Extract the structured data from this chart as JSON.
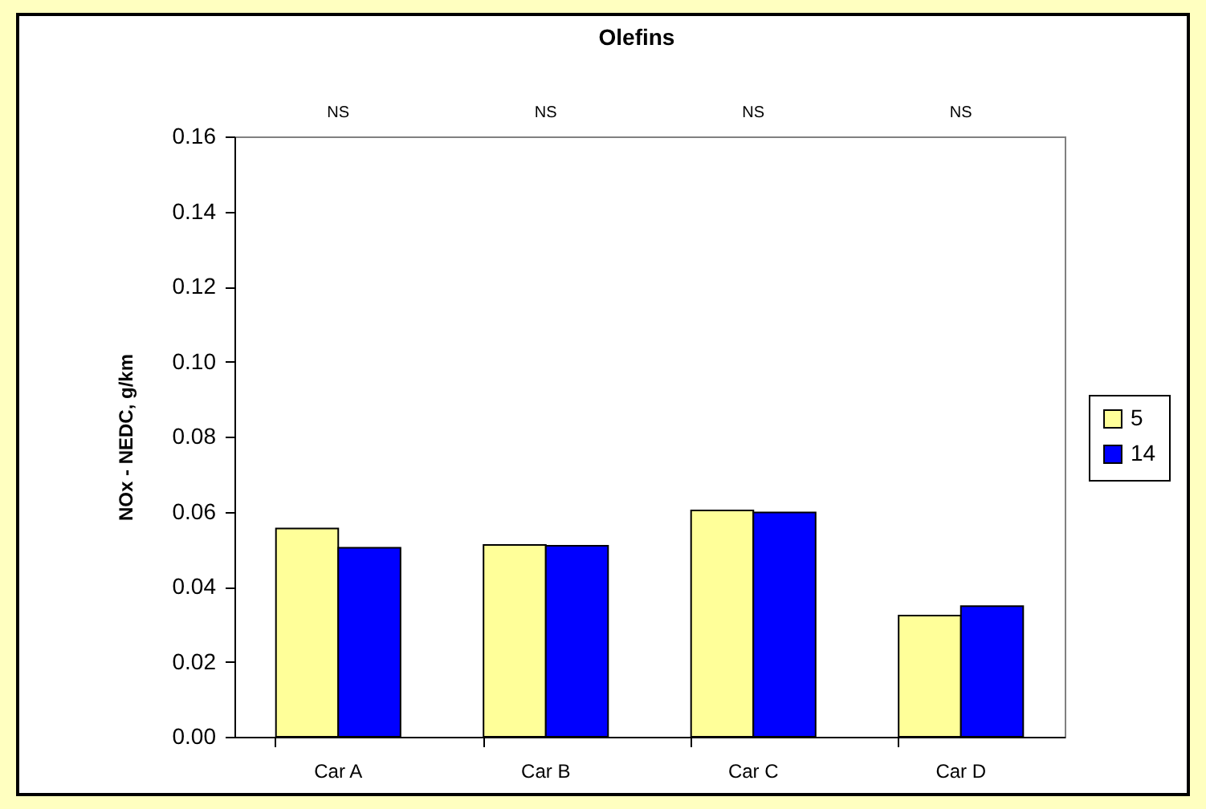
{
  "chart_data": {
    "type": "bar",
    "title": "Olefins",
    "ylabel": "NOx - NEDC, g/km",
    "categories": [
      "Car A",
      "Car B",
      "Car C",
      "Car D"
    ],
    "series": [
      {
        "name": "5",
        "color": "#ffff99",
        "values": [
          0.0555,
          0.0511,
          0.0603,
          0.0323
        ]
      },
      {
        "name": "14",
        "color": "#0000ff",
        "values": [
          0.0504,
          0.0509,
          0.0598,
          0.0348
        ]
      }
    ],
    "ylim": [
      0,
      0.16
    ],
    "yticks": [
      {
        "value": 0,
        "label": "0.00"
      },
      {
        "value": 0.02,
        "label": "0.02"
      },
      {
        "value": 0.04,
        "label": "0.04"
      },
      {
        "value": 0.06,
        "label": "0.06"
      },
      {
        "value": 0.08,
        "label": "0.08"
      },
      {
        "value": 0.1,
        "label": "0.10"
      },
      {
        "value": 0.12,
        "label": "0.12"
      },
      {
        "value": 0.14,
        "label": "0.14"
      },
      {
        "value": 0.16,
        "label": "0.16"
      }
    ],
    "annotations": [
      "NS",
      "NS",
      "NS",
      "NS"
    ],
    "grid": false,
    "legend": "right"
  }
}
